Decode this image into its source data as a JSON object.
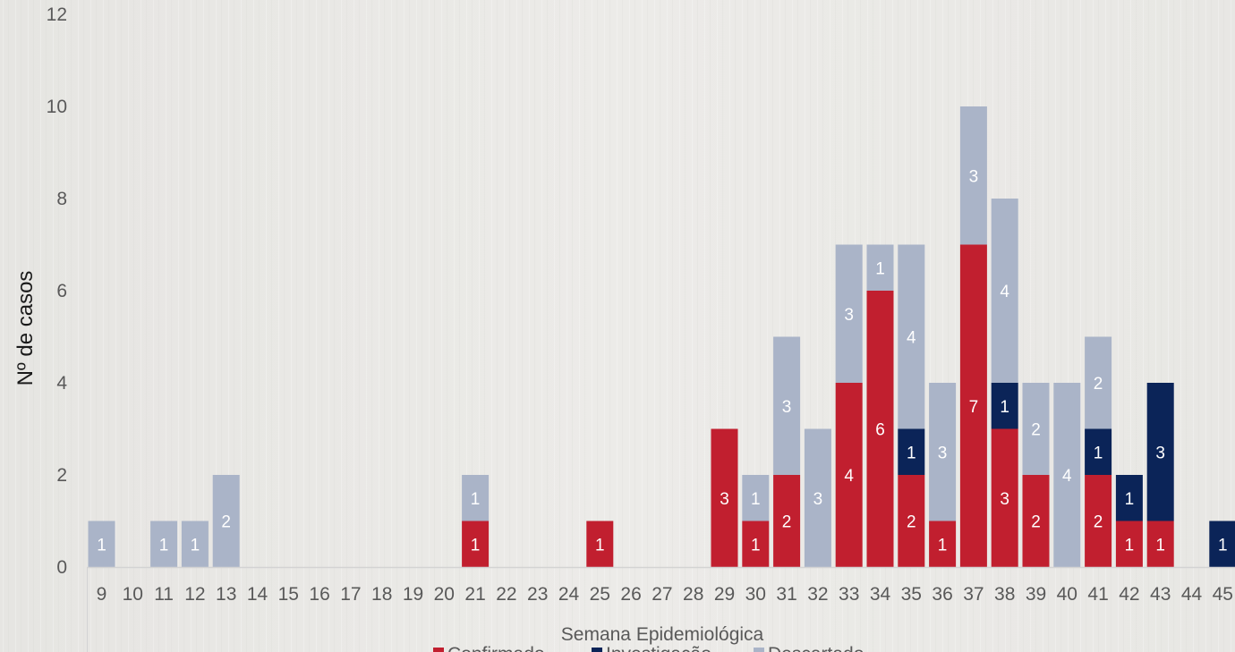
{
  "chart_data": {
    "type": "bar",
    "stacked": true,
    "title": "",
    "xlabel": "Semana Epidemiológica",
    "ylabel": "Nº de casos",
    "ylim": [
      0,
      12
    ],
    "yticks": [
      0,
      2,
      4,
      6,
      8,
      10,
      12
    ],
    "grid": false,
    "legend_position": "bottom",
    "categories": [
      "9",
      "10",
      "11",
      "12",
      "13",
      "14",
      "15",
      "16",
      "17",
      "18",
      "19",
      "20",
      "21",
      "22",
      "23",
      "24",
      "25",
      "26",
      "27",
      "28",
      "29",
      "30",
      "31",
      "32",
      "33",
      "34",
      "35",
      "36",
      "37",
      "38",
      "39",
      "40",
      "41",
      "42",
      "43",
      "44",
      "45"
    ],
    "series": [
      {
        "name": "Confirmado",
        "color": "#c11f2f",
        "values": [
          0,
          0,
          0,
          0,
          0,
          0,
          0,
          0,
          0,
          0,
          0,
          0,
          1,
          0,
          0,
          0,
          1,
          0,
          0,
          0,
          3,
          1,
          2,
          0,
          4,
          6,
          2,
          1,
          7,
          3,
          2,
          0,
          2,
          1,
          1,
          0,
          0
        ]
      },
      {
        "name": "Investigação",
        "color": "#0b2458",
        "values": [
          0,
          0,
          0,
          0,
          0,
          0,
          0,
          0,
          0,
          0,
          0,
          0,
          0,
          0,
          0,
          0,
          0,
          0,
          0,
          0,
          0,
          0,
          0,
          0,
          0,
          0,
          1,
          0,
          0,
          1,
          0,
          0,
          1,
          1,
          3,
          0,
          1
        ]
      },
      {
        "name": "Descartado",
        "color": "#aab4c8",
        "values": [
          1,
          0,
          1,
          1,
          2,
          0,
          0,
          0,
          0,
          0,
          0,
          0,
          1,
          0,
          0,
          0,
          0,
          0,
          0,
          0,
          0,
          1,
          3,
          3,
          3,
          1,
          4,
          3,
          3,
          4,
          2,
          4,
          2,
          0,
          0,
          0,
          0
        ]
      }
    ]
  }
}
